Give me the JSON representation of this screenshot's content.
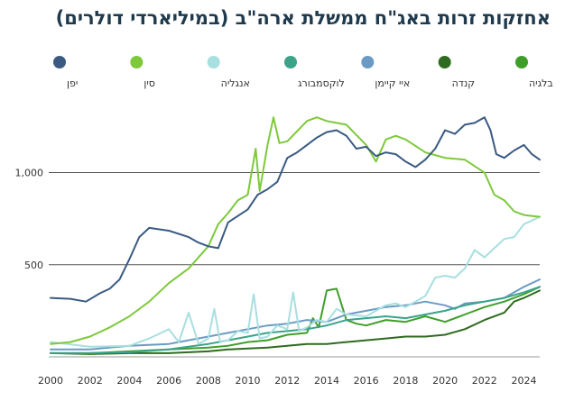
{
  "chart_data": {
    "type": "line",
    "title": "אחזקות זרות באג\"ח ממשלת ארה\"ב (במיליארדי דולרים)",
    "xlabel": "",
    "ylabel": "",
    "xlim": [
      2000,
      2024.8
    ],
    "ylim": [
      0,
      1350
    ],
    "grid": "horizontal",
    "x_ticks": [
      2000,
      2002,
      2004,
      2006,
      2008,
      2010,
      2012,
      2014,
      2016,
      2018,
      2020,
      2022,
      2024
    ],
    "y_ticks": [
      {
        "value": 500,
        "label": "500"
      },
      {
        "value": 1000,
        "label": "1,000"
      }
    ],
    "legend_position": "top",
    "series": [
      {
        "name": "יפן",
        "color": "#3a5a82",
        "x": [
          2000,
          2001,
          2001.8,
          2002.5,
          2003,
          2003.5,
          2004,
          2004.5,
          2005,
          2006,
          2007,
          2007.5,
          2008,
          2008.5,
          2009,
          2010,
          2010.5,
          2011,
          2011.5,
          2012,
          2012.5,
          2013,
          2013.5,
          2014,
          2014.5,
          2015,
          2015.5,
          2016,
          2016.5,
          2017,
          2017.5,
          2018,
          2018.5,
          2019,
          2019.5,
          2020,
          2020.5,
          2021,
          2021.5,
          2022,
          2022.3,
          2022.6,
          2023,
          2023.5,
          2024,
          2024.4,
          2024.8
        ],
        "y": [
          320,
          315,
          300,
          345,
          370,
          420,
          530,
          650,
          700,
          685,
          650,
          620,
          600,
          590,
          730,
          800,
          880,
          910,
          950,
          1080,
          1110,
          1150,
          1190,
          1220,
          1230,
          1200,
          1130,
          1140,
          1090,
          1110,
          1100,
          1060,
          1030,
          1070,
          1130,
          1230,
          1210,
          1260,
          1270,
          1300,
          1230,
          1100,
          1080,
          1120,
          1150,
          1100,
          1070
        ]
      },
      {
        "name": "סין",
        "color": "#7dc93a",
        "x": [
          2000,
          2001,
          2002,
          2003,
          2004,
          2005,
          2006,
          2007,
          2008,
          2008.5,
          2009,
          2009.5,
          2010,
          2010.4,
          2010.6,
          2011,
          2011.3,
          2011.6,
          2012,
          2013,
          2013.5,
          2014,
          2015,
          2016,
          2016.5,
          2017,
          2017.5,
          2018,
          2019,
          2020,
          2021,
          2022,
          2022.5,
          2023,
          2023.5,
          2024,
          2024.8
        ],
        "y": [
          70,
          80,
          110,
          160,
          220,
          300,
          400,
          480,
          600,
          720,
          780,
          850,
          880,
          1130,
          900,
          1150,
          1300,
          1160,
          1170,
          1280,
          1300,
          1280,
          1260,
          1150,
          1060,
          1180,
          1200,
          1180,
          1110,
          1080,
          1070,
          1000,
          880,
          850,
          790,
          770,
          760
        ]
      },
      {
        "name": "אנגליה",
        "color": "#a8dfe0",
        "x": [
          2000,
          2002,
          2004,
          2005,
          2006,
          2006.5,
          2007,
          2007.5,
          2008,
          2008.3,
          2008.6,
          2009,
          2009.5,
          2010,
          2010.3,
          2010.6,
          2011,
          2011.5,
          2012,
          2012.3,
          2012.6,
          2013,
          2013.5,
          2014,
          2014.5,
          2015,
          2016,
          2017,
          2017.5,
          2018,
          2018.5,
          2019,
          2019.5,
          2020,
          2020.5,
          2021,
          2021.5,
          2022,
          2022.5,
          2023,
          2023.5,
          2024,
          2024.8
        ],
        "y": [
          80,
          55,
          60,
          100,
          150,
          80,
          240,
          70,
          100,
          260,
          80,
          90,
          140,
          130,
          340,
          100,
          110,
          170,
          150,
          350,
          140,
          160,
          200,
          190,
          260,
          230,
          220,
          280,
          290,
          270,
          300,
          330,
          430,
          440,
          430,
          480,
          580,
          540,
          590,
          640,
          650,
          720,
          760
        ]
      },
      {
        "name": "לוקסמבורג",
        "color": "#3aa38a",
        "x": [
          2000,
          2002,
          2004,
          2006,
          2008,
          2009,
          2010,
          2011,
          2012,
          2013,
          2014,
          2015,
          2016,
          2017,
          2018,
          2019,
          2020,
          2021,
          2022,
          2023,
          2024,
          2024.8
        ],
        "y": [
          20,
          20,
          25,
          40,
          70,
          90,
          110,
          130,
          140,
          150,
          170,
          200,
          210,
          220,
          210,
          230,
          250,
          280,
          300,
          320,
          350,
          380
        ]
      },
      {
        "name": "איי קיימן",
        "color": "#6b9bc3",
        "x": [
          2000,
          2002,
          2004,
          2006,
          2008,
          2009,
          2010,
          2011,
          2012,
          2013,
          2014,
          2015,
          2016,
          2017,
          2018,
          2019,
          2020,
          2020.5,
          2021,
          2022,
          2023,
          2024,
          2024.8
        ],
        "y": [
          40,
          40,
          60,
          70,
          110,
          130,
          150,
          170,
          180,
          200,
          190,
          230,
          250,
          270,
          280,
          300,
          280,
          260,
          290,
          300,
          320,
          380,
          420
        ]
      },
      {
        "name": "קנדה",
        "color": "#2f6b1f",
        "x": [
          2000,
          2002,
          2004,
          2006,
          2007,
          2008,
          2009,
          2010,
          2011,
          2012,
          2013,
          2014,
          2015,
          2016,
          2017,
          2018,
          2019,
          2020,
          2021,
          2022,
          2023,
          2023.5,
          2024,
          2024.8
        ],
        "y": [
          20,
          15,
          20,
          20,
          25,
          30,
          40,
          45,
          50,
          60,
          70,
          70,
          80,
          90,
          100,
          110,
          110,
          120,
          150,
          200,
          240,
          300,
          320,
          360
        ]
      },
      {
        "name": "בלגיה",
        "color": "#3f9e2a",
        "x": [
          2000,
          2002,
          2004,
          2006,
          2008,
          2009,
          2010,
          2011,
          2012,
          2013,
          2013.3,
          2013.6,
          2014,
          2014.5,
          2015,
          2015.5,
          2016,
          2017,
          2018,
          2019,
          2020,
          2021,
          2022,
          2023,
          2024,
          2024.8
        ],
        "y": [
          20,
          20,
          30,
          40,
          50,
          60,
          80,
          90,
          120,
          130,
          210,
          160,
          360,
          370,
          200,
          180,
          170,
          200,
          190,
          220,
          190,
          230,
          270,
          300,
          340,
          380
        ]
      }
    ]
  }
}
